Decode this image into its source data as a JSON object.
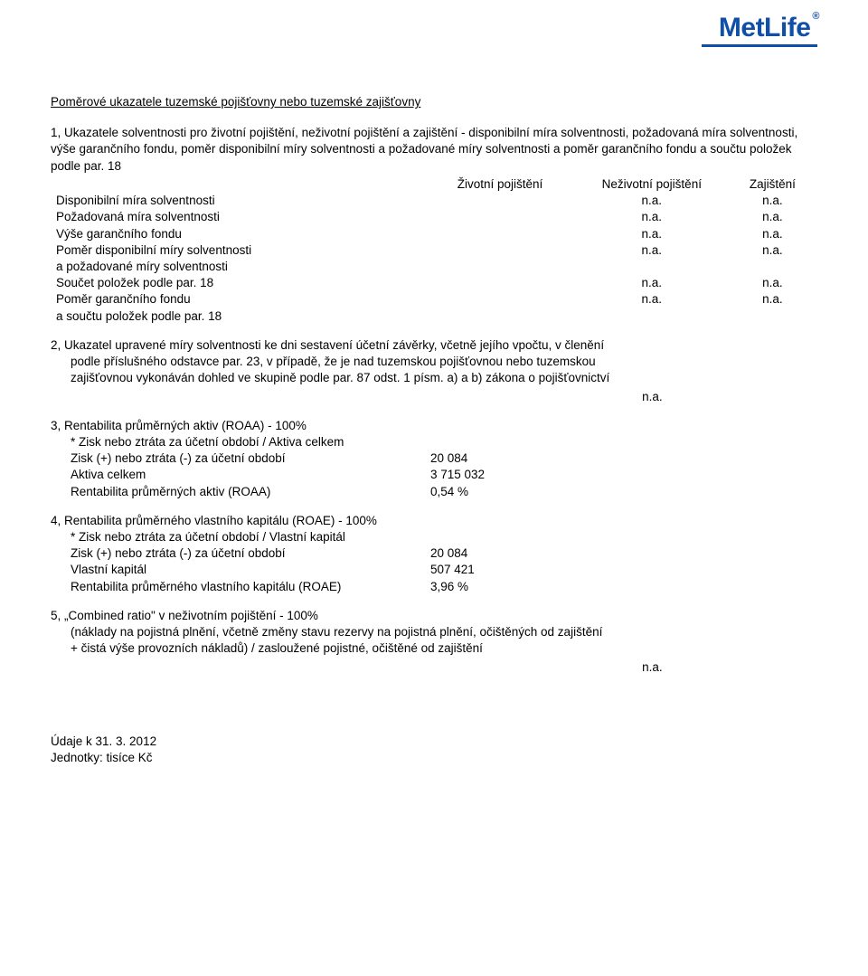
{
  "logo": {
    "text": "MetLife",
    "reg": "®",
    "color": "#0f4fa8"
  },
  "title": "Poměrové ukazatele tuzemské pojišťovny nebo tuzemské zajišťovny",
  "sec1": {
    "intro": "1, Ukazatele solventnosti pro životní pojištění, neživotní pojištění a zajištění - disponibilní míra solventnosti, požadovaná míra solventnosti, výše garančního fondu, poměr disponibilní míry solventnosti a požadované míry solventnosti a poměr garančního fondu a součtu položek podle par. 18",
    "headers": {
      "c1": "Životní pojištění",
      "c2": "Neživotní pojištění",
      "c3": "Zajištění"
    },
    "rows": [
      {
        "label": "Disponibilní míra solventnosti",
        "c1": "",
        "c2": "n.a.",
        "c3": "n.a."
      },
      {
        "label": "Požadovaná míra solventnosti",
        "c1": "",
        "c2": "n.a.",
        "c3": "n.a."
      },
      {
        "label": "Výše garančního fondu",
        "c1": "",
        "c2": "n.a.",
        "c3": "n.a."
      },
      {
        "label": "Poměr disponibilní míry solventnosti",
        "c1": "",
        "c2": "n.a.",
        "c3": "n.a."
      },
      {
        "label": "a požadované míry solventnosti",
        "c1": "",
        "c2": "",
        "c3": ""
      },
      {
        "label": "Součet položek podle par. 18",
        "c1": "",
        "c2": "n.a.",
        "c3": "n.a."
      },
      {
        "label": "Poměr garančního fondu",
        "c1": "",
        "c2": "n.a.",
        "c3": "n.a."
      },
      {
        "label": "a součtu položek podle par. 18",
        "c1": "",
        "c2": "",
        "c3": ""
      }
    ]
  },
  "sec2": {
    "text_l1": "2, Ukazatel upravené míry solventnosti ke dni sestavení účetní závěrky, včetně jejího vpočtu, v členění",
    "text_l2": "podle příslušného odstavce par. 23, v případě, že je nad tuzemskou pojišťovnou nebo tuzemskou",
    "text_l3": "zajišťovnou vykonáván dohled ve skupině podle par. 87 odst. 1 písm. a) a b) zákona o pojišťovnictví",
    "value": "n.a."
  },
  "sec3": {
    "title": "3, Rentabilita průměrných aktiv (ROAA) - 100%",
    "formula": "* Zisk nebo ztráta za účetní období / Aktiva celkem",
    "rows": [
      {
        "label": "Zisk (+) nebo ztráta (-) za účetní období",
        "value": "20 084"
      },
      {
        "label": "Aktiva celkem",
        "value": "3 715 032"
      },
      {
        "label": "Rentabilita průměrných aktiv (ROAA)",
        "value": "0,54 %"
      }
    ]
  },
  "sec4": {
    "title": "4, Rentabilita průměrného vlastního kapitálu (ROAE) - 100%",
    "formula": "* Zisk nebo ztráta za účetní období / Vlastní kapitál",
    "rows": [
      {
        "label": "Zisk (+) nebo ztráta (-) za účetní období",
        "value": "20 084"
      },
      {
        "label": "Vlastní kapitál",
        "value": "507 421"
      },
      {
        "label": "Rentabilita průměrného vlastního kapitálu (ROAE)",
        "value": "3,96 %"
      }
    ]
  },
  "sec5": {
    "title": "5, „Combined ratio\" v neživotním pojištění - 100%",
    "line1": "(náklady na pojistná plnění, včetně změny stavu rezervy na pojistná plnění, očištěných od zajištění",
    "line2": "+ čistá výše provozních nákladů) / zasloužené pojistné, očištěné od zajištění",
    "value": "n.a."
  },
  "footer": {
    "line1": "Údaje k 31. 3. 2012",
    "line2": "Jednotky: tisíce Kč"
  }
}
